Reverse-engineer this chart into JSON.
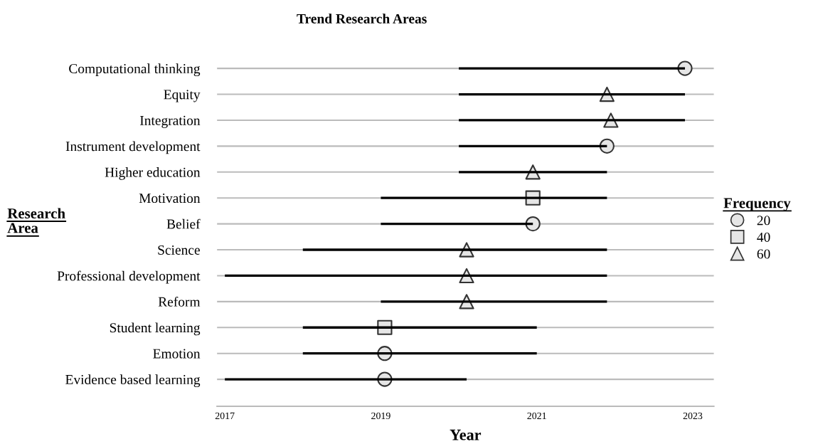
{
  "chart_data": {
    "type": "bar",
    "orientation": "horizontal",
    "title": "Trend Research Areas",
    "xlabel": "Year",
    "ylabel": "Research\nArea",
    "legend_title": "Frequency",
    "legend": "right",
    "grid": "y",
    "categories": [
      "Computational thinking",
      "Equity",
      "Integration",
      "Instrument development",
      "Higher education",
      "Motivation",
      "Belief",
      "Science",
      "Professional development",
      "Reform",
      "Student learning",
      "Emotion",
      "Evidence based learning"
    ],
    "xlim": [
      2016.9,
      2023.27
    ],
    "xticks": [
      2017,
      2019,
      2021,
      2023
    ],
    "series": [
      {
        "color": "#000000",
        "base": [
          2020,
          2020,
          2020,
          2020,
          2020,
          2019,
          2019,
          2018,
          2017,
          2019,
          2018,
          2018,
          2017
        ],
        "values": [
          2.9,
          2.9,
          2.9,
          1.9,
          1.9,
          2.9,
          1.95,
          3.9,
          4.9,
          2.9,
          3.0,
          3.0,
          3.1
        ]
      },
      {
        "type": "scatter",
        "name": "20",
        "marker": "circle",
        "color": "#e6e6e6",
        "values": [
          2022.9,
          null,
          null,
          2021.9,
          null,
          null,
          2020.95,
          null,
          null,
          null,
          null,
          2019.05,
          2019.05
        ]
      },
      {
        "type": "scatter",
        "name": "40",
        "marker": "square",
        "color": "#e6e6e6",
        "values": [
          null,
          null,
          null,
          null,
          null,
          2020.95,
          null,
          null,
          null,
          null,
          2019.05,
          null,
          null
        ]
      },
      {
        "type": "scatter",
        "name": "60",
        "marker": "triangle",
        "color": "#e6e6e6",
        "values": [
          null,
          2021.9,
          2021.95,
          null,
          2020.95,
          null,
          null,
          2020.1,
          2020.1,
          2020.1,
          null,
          null,
          null
        ]
      }
    ]
  }
}
